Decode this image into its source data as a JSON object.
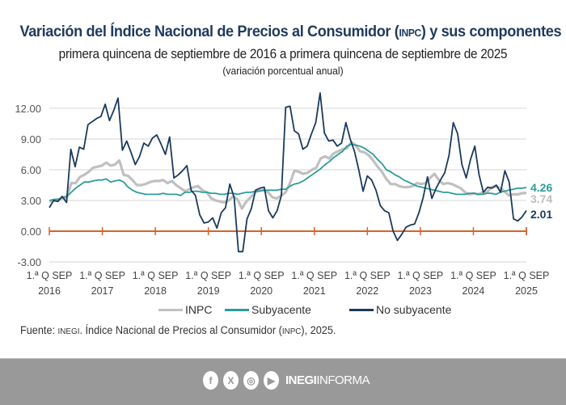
{
  "header": {
    "title_pre": "Variación del Índice Nacional de Precios al Consumidor (",
    "title_abbr": "INPC",
    "title_post": ") y sus componentes",
    "subtitle": "primera quincena de septiembre de 2016 a primera quincena de septiembre de 2025",
    "unit_note": "(variación porcentual anual)"
  },
  "source": {
    "prefix": "Fuente: ",
    "org": "INEGI",
    "text_mid": ". Índice Nacional de Precios al Consumidor (",
    "abbr": "INPC",
    "text_end": "), 2025."
  },
  "footer": {
    "icons": [
      "facebook-icon",
      "x-icon",
      "instagram-icon",
      "youtube-icon"
    ],
    "brand_bold": "INEGI",
    "brand_light": "INFORMA"
  },
  "colors": {
    "inpc": "#c0c0c0",
    "subyacente": "#2a9d9a",
    "no_subyacente": "#1b3a5c",
    "zero_axis": "#d9612b",
    "grid": "#dddddd"
  },
  "chart_data": {
    "type": "line",
    "title": "Variación del Índice Nacional de Precios al Consumidor (INPC) y sus componentes",
    "subtitle": "primera quincena de septiembre de 2016 a primera quincena de septiembre de 2025",
    "ylabel": "variación porcentual anual",
    "xlabel": "",
    "ylim": [
      -3,
      12
    ],
    "xlim": [
      2016.7,
      2025.7
    ],
    "yticks": [
      "12.00",
      "9.00",
      "6.00",
      "3.00",
      "0.00",
      "-3.00"
    ],
    "ytick_values": [
      12,
      9,
      6,
      3,
      0,
      -3
    ],
    "xticks": [
      {
        "line1": "1.ª Q SEP",
        "line2": "2016"
      },
      {
        "line1": "1.ª Q SEP",
        "line2": "2017"
      },
      {
        "line1": "1.ª Q SEP",
        "line2": "2018"
      },
      {
        "line1": "1.ª Q SEP",
        "line2": "2019"
      },
      {
        "line1": "1.ª Q SEP",
        "line2": "2020"
      },
      {
        "line1": "1.ª Q SEP",
        "line2": "2021"
      },
      {
        "line1": "1.ª Q SEP",
        "line2": "2022"
      },
      {
        "line1": "1.ª Q SEP",
        "line2": "2023"
      },
      {
        "line1": "1.ª Q SEP",
        "line2": "2024"
      },
      {
        "line1": "1.ª Q SEP",
        "line2": "2025"
      }
    ],
    "grid": true,
    "legend_position": "bottom",
    "x_start": 2016.7,
    "x_step_months": 1,
    "series": [
      {
        "name": "INPC",
        "end_label": "3.74",
        "values": [
          2.9,
          3.0,
          3.1,
          3.2,
          3.3,
          4.7,
          4.7,
          5.3,
          5.5,
          5.8,
          6.2,
          6.3,
          6.4,
          6.7,
          6.4,
          6.5,
          6.9,
          5.5,
          5.4,
          5.0,
          4.5,
          4.5,
          4.6,
          4.8,
          4.9,
          4.9,
          5.0,
          4.7,
          4.9,
          4.5,
          4.2,
          3.9,
          4.1,
          4.3,
          4.4,
          4.0,
          3.8,
          3.2,
          3.0,
          2.9,
          2.8,
          3.0,
          3.4,
          3.1,
          2.2,
          2.9,
          3.3,
          3.8,
          4.0,
          4.0,
          3.8,
          3.3,
          3.2,
          3.5,
          3.8,
          4.7,
          5.9,
          5.8,
          5.6,
          5.7,
          6.0,
          6.2,
          7.1,
          7.3,
          7.1,
          7.6,
          7.8,
          8.0,
          8.1,
          8.7,
          8.4,
          7.8,
          7.7,
          7.4,
          6.9,
          6.3,
          5.8,
          5.1,
          4.6,
          4.6,
          4.4,
          4.3,
          4.3,
          4.4,
          4.7,
          4.6,
          4.7,
          5.2,
          5.6,
          5.0,
          4.6,
          4.7,
          4.6,
          4.4,
          4.2,
          3.8,
          3.6,
          3.7,
          3.6,
          3.8,
          3.8,
          4.3,
          4.4,
          4.2,
          3.9,
          3.5,
          3.6,
          3.6,
          3.7,
          3.74
        ]
      },
      {
        "name": "Subyacente",
        "end_label": "4.26",
        "values": [
          3.0,
          3.1,
          3.1,
          3.3,
          3.4,
          3.8,
          4.2,
          4.5,
          4.8,
          4.8,
          4.9,
          5.0,
          5.0,
          5.1,
          4.8,
          4.9,
          5.0,
          4.8,
          4.3,
          4.0,
          3.8,
          3.7,
          3.6,
          3.6,
          3.6,
          3.6,
          3.7,
          3.6,
          3.6,
          3.6,
          3.5,
          3.8,
          3.8,
          3.9,
          3.9,
          3.8,
          3.8,
          3.7,
          3.7,
          3.6,
          3.6,
          3.7,
          3.7,
          3.6,
          3.7,
          3.8,
          3.8,
          3.9,
          3.9,
          4.0,
          4.0,
          4.0,
          4.0,
          4.1,
          4.1,
          4.4,
          4.6,
          4.7,
          4.9,
          5.2,
          5.5,
          5.8,
          6.1,
          6.5,
          6.8,
          7.2,
          7.5,
          7.8,
          8.3,
          8.5,
          8.4,
          8.3,
          8.1,
          7.8,
          7.5,
          7.0,
          6.6,
          6.0,
          5.8,
          5.5,
          5.3,
          5.0,
          4.8,
          4.6,
          4.4,
          4.3,
          4.2,
          4.1,
          4.0,
          3.9,
          3.8,
          3.8,
          3.7,
          3.6,
          3.6,
          3.6,
          3.7,
          3.7,
          3.6,
          3.6,
          3.7,
          3.7,
          3.6,
          3.8,
          3.9,
          4.0,
          4.1,
          4.2,
          4.2,
          4.26
        ]
      },
      {
        "name": "No subyacente",
        "end_label": "2.01",
        "values": [
          2.3,
          3.0,
          2.9,
          3.4,
          2.8,
          8.0,
          6.3,
          8.2,
          8.0,
          10.4,
          10.7,
          11.0,
          11.2,
          12.4,
          10.8,
          11.8,
          13.0,
          7.9,
          8.8,
          7.7,
          6.5,
          7.3,
          8.6,
          8.3,
          9.1,
          9.4,
          8.5,
          7.5,
          9.2,
          5.2,
          5.5,
          5.9,
          6.4,
          4.0,
          3.5,
          1.6,
          0.8,
          0.9,
          1.3,
          0.3,
          1.8,
          2.3,
          4.6,
          3.3,
          -2.0,
          -2.0,
          1.2,
          2.2,
          4.0,
          4.2,
          4.3,
          2.0,
          1.3,
          2.0,
          3.5,
          12.1,
          12.2,
          9.8,
          9.5,
          8.0,
          8.3,
          9.5,
          10.6,
          13.5,
          9.6,
          8.8,
          8.9,
          8.3,
          8.6,
          10.6,
          9.0,
          7.8,
          6.0,
          3.9,
          5.4,
          5.0,
          4.0,
          2.5,
          2.0,
          1.8,
          0.0,
          -0.9,
          -0.3,
          0.4,
          0.6,
          0.7,
          1.8,
          3.3,
          5.3,
          3.2,
          4.2,
          5.0,
          5.7,
          7.4,
          10.6,
          9.5,
          6.5,
          5.2,
          7.0,
          8.3,
          5.5,
          3.8,
          4.3,
          4.2,
          4.5,
          3.8,
          5.9,
          4.8,
          1.2,
          1.0,
          1.4,
          2.01
        ]
      }
    ]
  },
  "legend": [
    {
      "label": "INPC",
      "key": "inpc"
    },
    {
      "label": "Subyacente",
      "key": "subyacente"
    },
    {
      "label": "No subyacente",
      "key": "no_subyacente"
    }
  ]
}
